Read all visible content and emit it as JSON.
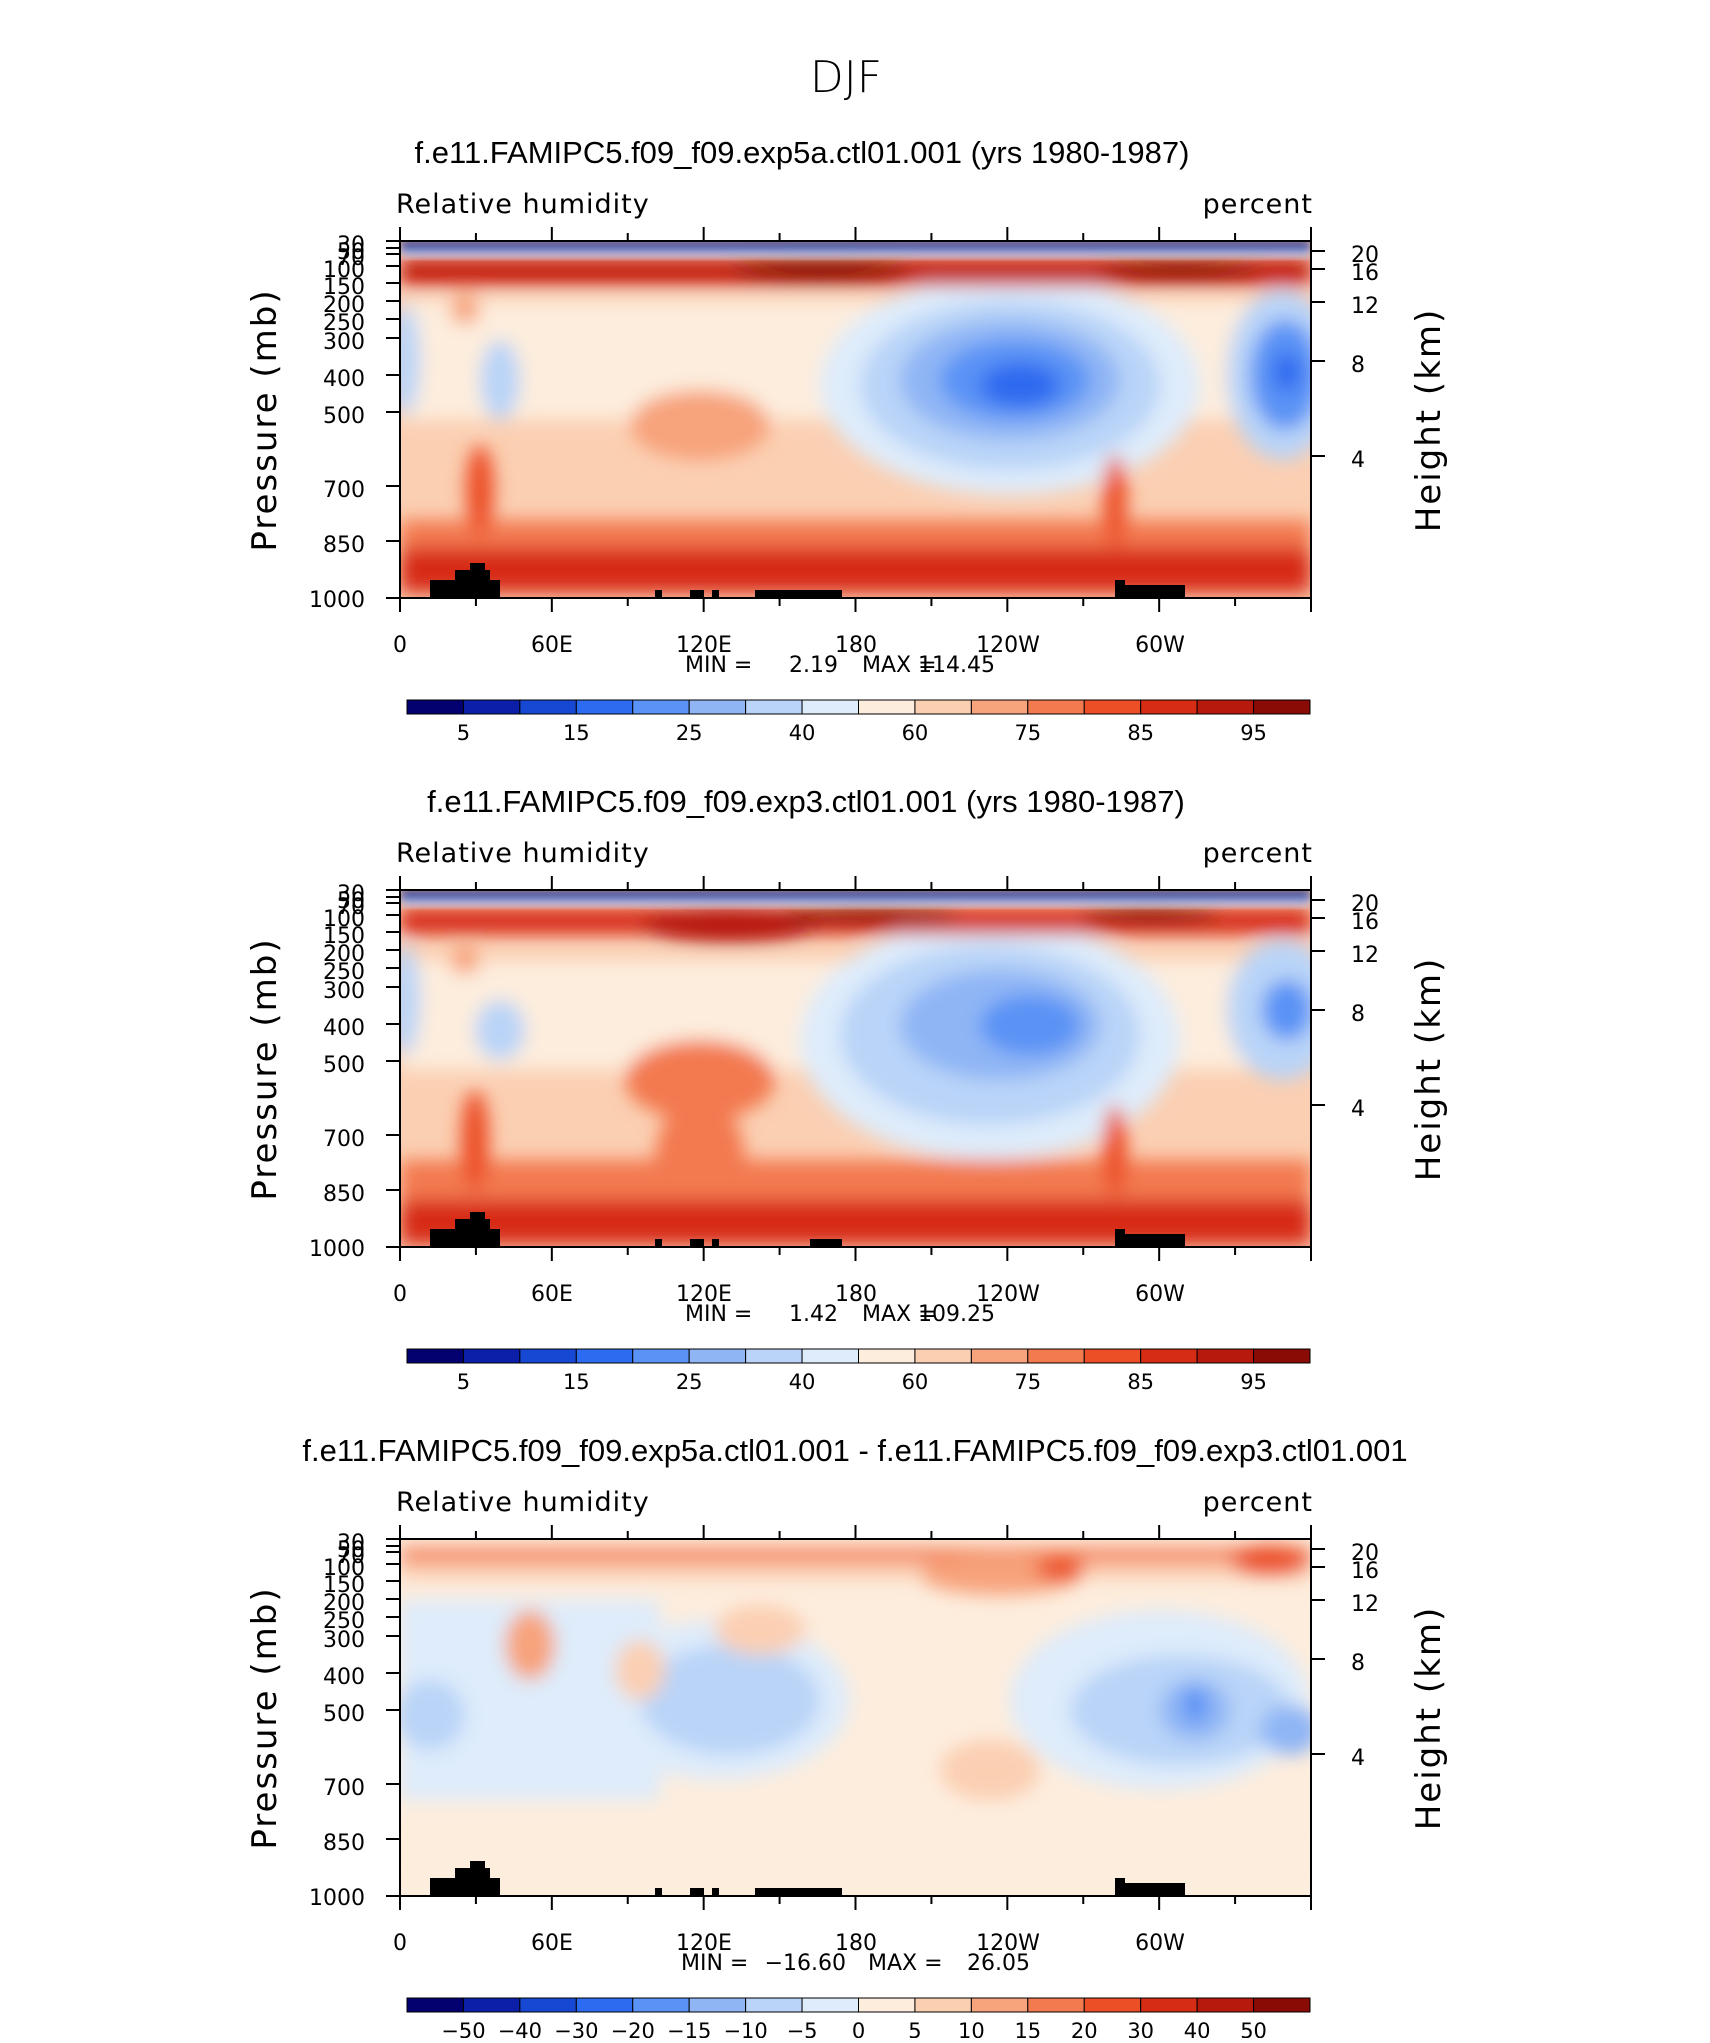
{
  "figure_title": "DJF",
  "chart_data": [
    {
      "type": "heatmap",
      "title": "f.e11.FAMIPC5.f09_f09.exp5a.ctl01.001 (yrs 1980-1987)",
      "variable": "Relative humidity",
      "units": "percent",
      "ylabel": "Pressure (mb)",
      "ylabel_right": "Height (km)",
      "x_ticks": [
        "0",
        "60E",
        "120E",
        "180",
        "120W",
        "60W"
      ],
      "y_ticks": [
        "30",
        "50",
        "70",
        "100",
        "150",
        "200",
        "250",
        "300",
        "400",
        "500",
        "700",
        "850",
        "1000"
      ],
      "y_right_ticks": [
        "20",
        "16",
        "12",
        "8",
        "4"
      ],
      "min_label": "MIN =",
      "min": "2.19",
      "max_label": "MAX =",
      "max": "114.45",
      "colorbar_labels": [
        "5",
        "15",
        "25",
        "40",
        "60",
        "75",
        "85",
        "95"
      ]
    },
    {
      "type": "heatmap",
      "title": "f.e11.FAMIPC5.f09_f09.exp3.ctl01.001 (yrs 1980-1987)",
      "variable": "Relative humidity",
      "units": "percent",
      "ylabel": "Pressure (mb)",
      "ylabel_right": "Height (km)",
      "x_ticks": [
        "0",
        "60E",
        "120E",
        "180",
        "120W",
        "60W"
      ],
      "y_ticks": [
        "30",
        "50",
        "70",
        "100",
        "150",
        "200",
        "250",
        "300",
        "400",
        "500",
        "700",
        "850",
        "1000"
      ],
      "y_right_ticks": [
        "20",
        "16",
        "12",
        "8",
        "4"
      ],
      "min_label": "MIN =",
      "min": "1.42",
      "max_label": "MAX =",
      "max": "109.25",
      "colorbar_labels": [
        "5",
        "15",
        "25",
        "40",
        "60",
        "75",
        "85",
        "95"
      ]
    },
    {
      "type": "heatmap",
      "title": "f.e11.FAMIPC5.f09_f09.exp5a.ctl01.001 - f.e11.FAMIPC5.f09_f09.exp3.ctl01.001",
      "variable": "Relative humidity",
      "units": "percent",
      "ylabel": "Pressure (mb)",
      "ylabel_right": "Height (km)",
      "x_ticks": [
        "0",
        "60E",
        "120E",
        "180",
        "120W",
        "60W"
      ],
      "y_ticks": [
        "30",
        "50",
        "70",
        "100",
        "150",
        "200",
        "250",
        "300",
        "400",
        "500",
        "700",
        "850",
        "1000"
      ],
      "y_right_ticks": [
        "20",
        "16",
        "12",
        "8",
        "4"
      ],
      "min_label": "MIN =",
      "min": "−16.60",
      "max_label": "MAX =",
      "max": "26.05",
      "colorbar_labels": [
        "−50",
        "−40",
        "−30",
        "−20",
        "−15",
        "−10",
        "−5",
        "0",
        "5",
        "10",
        "15",
        "20",
        "30",
        "40",
        "50"
      ]
    }
  ],
  "colors": {
    "scale": [
      "#03006f",
      "#0b1fa8",
      "#1748d4",
      "#2d6bf0",
      "#5a93f5",
      "#8fb5f5",
      "#b9d4f8",
      "#deecfb",
      "#fdeddd",
      "#fbcfb2",
      "#f7a37b",
      "#f3794f",
      "#ec4e26",
      "#d72c14",
      "#b7190c",
      "#8a0a06"
    ],
    "topography": "#000000"
  }
}
